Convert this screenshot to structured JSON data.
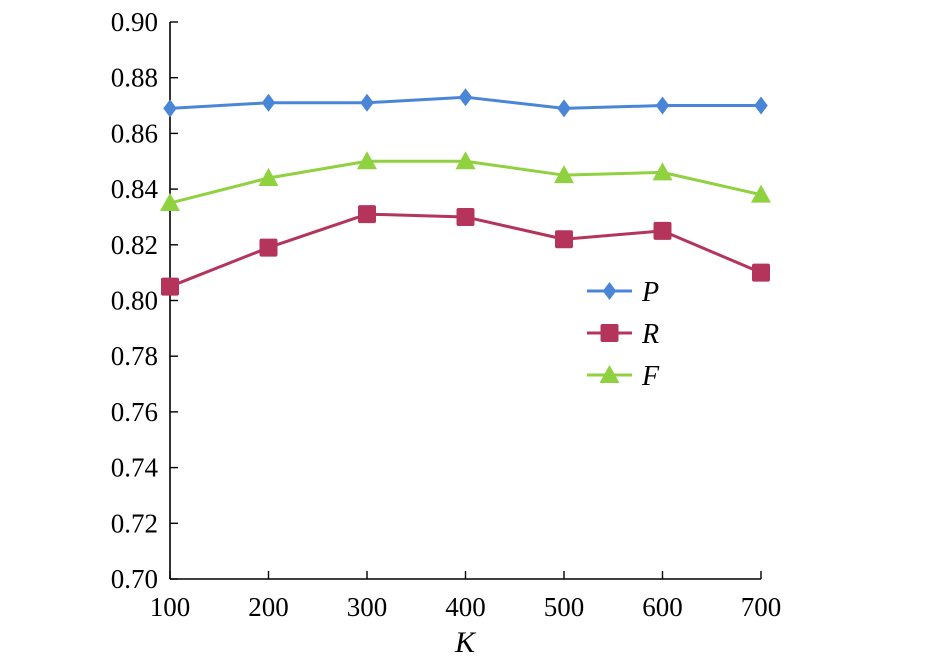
{
  "chart_data": {
    "type": "line",
    "title": "",
    "xlabel": "K",
    "ylabel": "",
    "categories": [
      100,
      200,
      300,
      400,
      500,
      600,
      700
    ],
    "ylim": [
      0.7,
      0.9
    ],
    "yticks": [
      "0.70",
      "0.72",
      "0.74",
      "0.76",
      "0.78",
      "0.80",
      "0.82",
      "0.84",
      "0.86",
      "0.88",
      "0.90"
    ],
    "xticks": [
      "100",
      "200",
      "300",
      "400",
      "500",
      "600",
      "700"
    ],
    "grid": false,
    "legend_position": "center-right",
    "series": [
      {
        "name": "P",
        "marker": "diamond",
        "color": "#4a86d8",
        "values": [
          0.869,
          0.871,
          0.871,
          0.873,
          0.869,
          0.87,
          0.87
        ]
      },
      {
        "name": "R",
        "marker": "square",
        "color": "#b5345c",
        "values": [
          0.805,
          0.819,
          0.831,
          0.83,
          0.822,
          0.825,
          0.81
        ]
      },
      {
        "name": "F",
        "marker": "triangle",
        "color": "#8fd13f",
        "values": [
          0.835,
          0.844,
          0.85,
          0.85,
          0.845,
          0.846,
          0.838
        ]
      }
    ]
  }
}
